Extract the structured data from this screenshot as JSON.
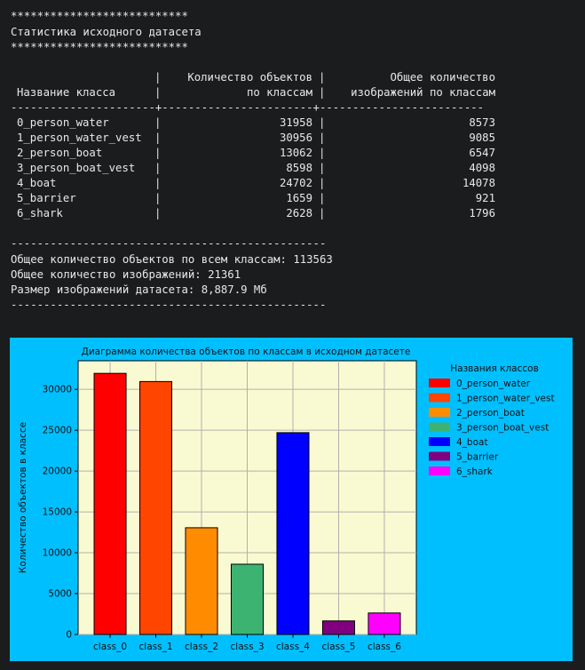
{
  "terminal": {
    "stars": "***************************",
    "heading": "Статистика исходного датасета",
    "table": {
      "headers": [
        {
          "line1": "",
          "line2": "Название класса"
        },
        {
          "line1": "Количество объектов",
          "line2": "по классам"
        },
        {
          "line1": "Общее количество",
          "line2": "изображений по классам"
        }
      ],
      "header_separator": "----------------------+-----------------------+-------------------------",
      "rows": [
        {
          "name": "0_person_water",
          "objects": "31958",
          "images": "8573"
        },
        {
          "name": "1_person_water_vest",
          "objects": "30956",
          "images": "9085"
        },
        {
          "name": "2_person_boat",
          "objects": "13062",
          "images": "6547"
        },
        {
          "name": "3_person_boat_vest",
          "objects": "8598",
          "images": "4098"
        },
        {
          "name": "4_boat",
          "objects": "24702",
          "images": "14078"
        },
        {
          "name": "5_barrier",
          "objects": "1659",
          "images": "921"
        },
        {
          "name": "6_shark",
          "objects": "2628",
          "images": "1796"
        }
      ]
    },
    "dashes": "------------------------------------------------",
    "summary": [
      "Общее количество объектов по всем классам: 113563",
      "Общее количество изображений: 21361",
      "Размер изображений датасета: 8,887.9 Мб"
    ]
  },
  "chart_data": {
    "type": "bar",
    "title": "Диаграмма количества объектов по классам в исходном датасете",
    "xlabel": "",
    "ylabel": "Количество объектов в классе",
    "categories": [
      "class_0",
      "class_1",
      "class_2",
      "class_3",
      "class_4",
      "class_5",
      "class_6"
    ],
    "values": [
      31958,
      30956,
      13062,
      8598,
      24702,
      1659,
      2628
    ],
    "colors": [
      "#ff0000",
      "#ff4500",
      "#ff8c00",
      "#3cb371",
      "#0000ff",
      "#800080",
      "#ff00ff"
    ],
    "ylim": [
      0,
      33500
    ],
    "yticks": [
      0,
      5000,
      10000,
      15000,
      20000,
      25000,
      30000
    ],
    "grid": true,
    "legend": {
      "title": "Названия классов",
      "placement": "right",
      "entries": [
        "0_person_water",
        "1_person_water_vest",
        "2_person_boat",
        "3_person_boat_vest",
        "4_boat",
        "5_barrier",
        "6_shark"
      ]
    },
    "plot_background": "#fafad2",
    "figure_background": "#00bfff"
  }
}
